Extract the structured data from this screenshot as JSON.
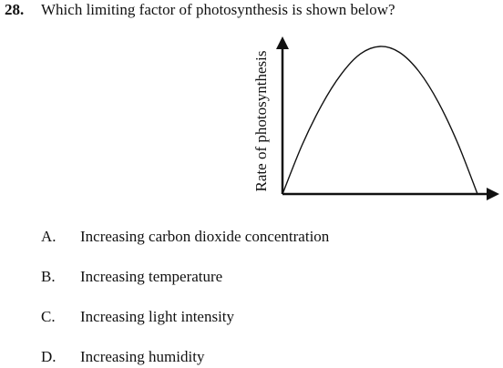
{
  "question": {
    "number": "28.",
    "text": "Which limiting factor of photosynthesis is shown below?"
  },
  "chart_data": {
    "type": "line",
    "title": "",
    "xlabel": "",
    "ylabel": "Rate of photosynthesis",
    "shape": "bell-shaped curve rising from zero to a peak then falling back to zero",
    "x": [
      0,
      10,
      20,
      30,
      40,
      50,
      60,
      70,
      80,
      90,
      100
    ],
    "y": [
      0,
      33,
      60,
      81,
      95,
      100,
      96,
      83,
      62,
      34,
      0
    ],
    "xlim": [
      0,
      100
    ],
    "ylim": [
      0,
      100
    ],
    "grid": false,
    "legend": "none",
    "line_color": "#111111"
  },
  "options": [
    {
      "letter": "A.",
      "text": "Increasing carbon dioxide concentration"
    },
    {
      "letter": "B.",
      "text": "Increasing temperature"
    },
    {
      "letter": "C.",
      "text": "Increasing light intensity"
    },
    {
      "letter": "D.",
      "text": "Increasing humidity"
    }
  ]
}
